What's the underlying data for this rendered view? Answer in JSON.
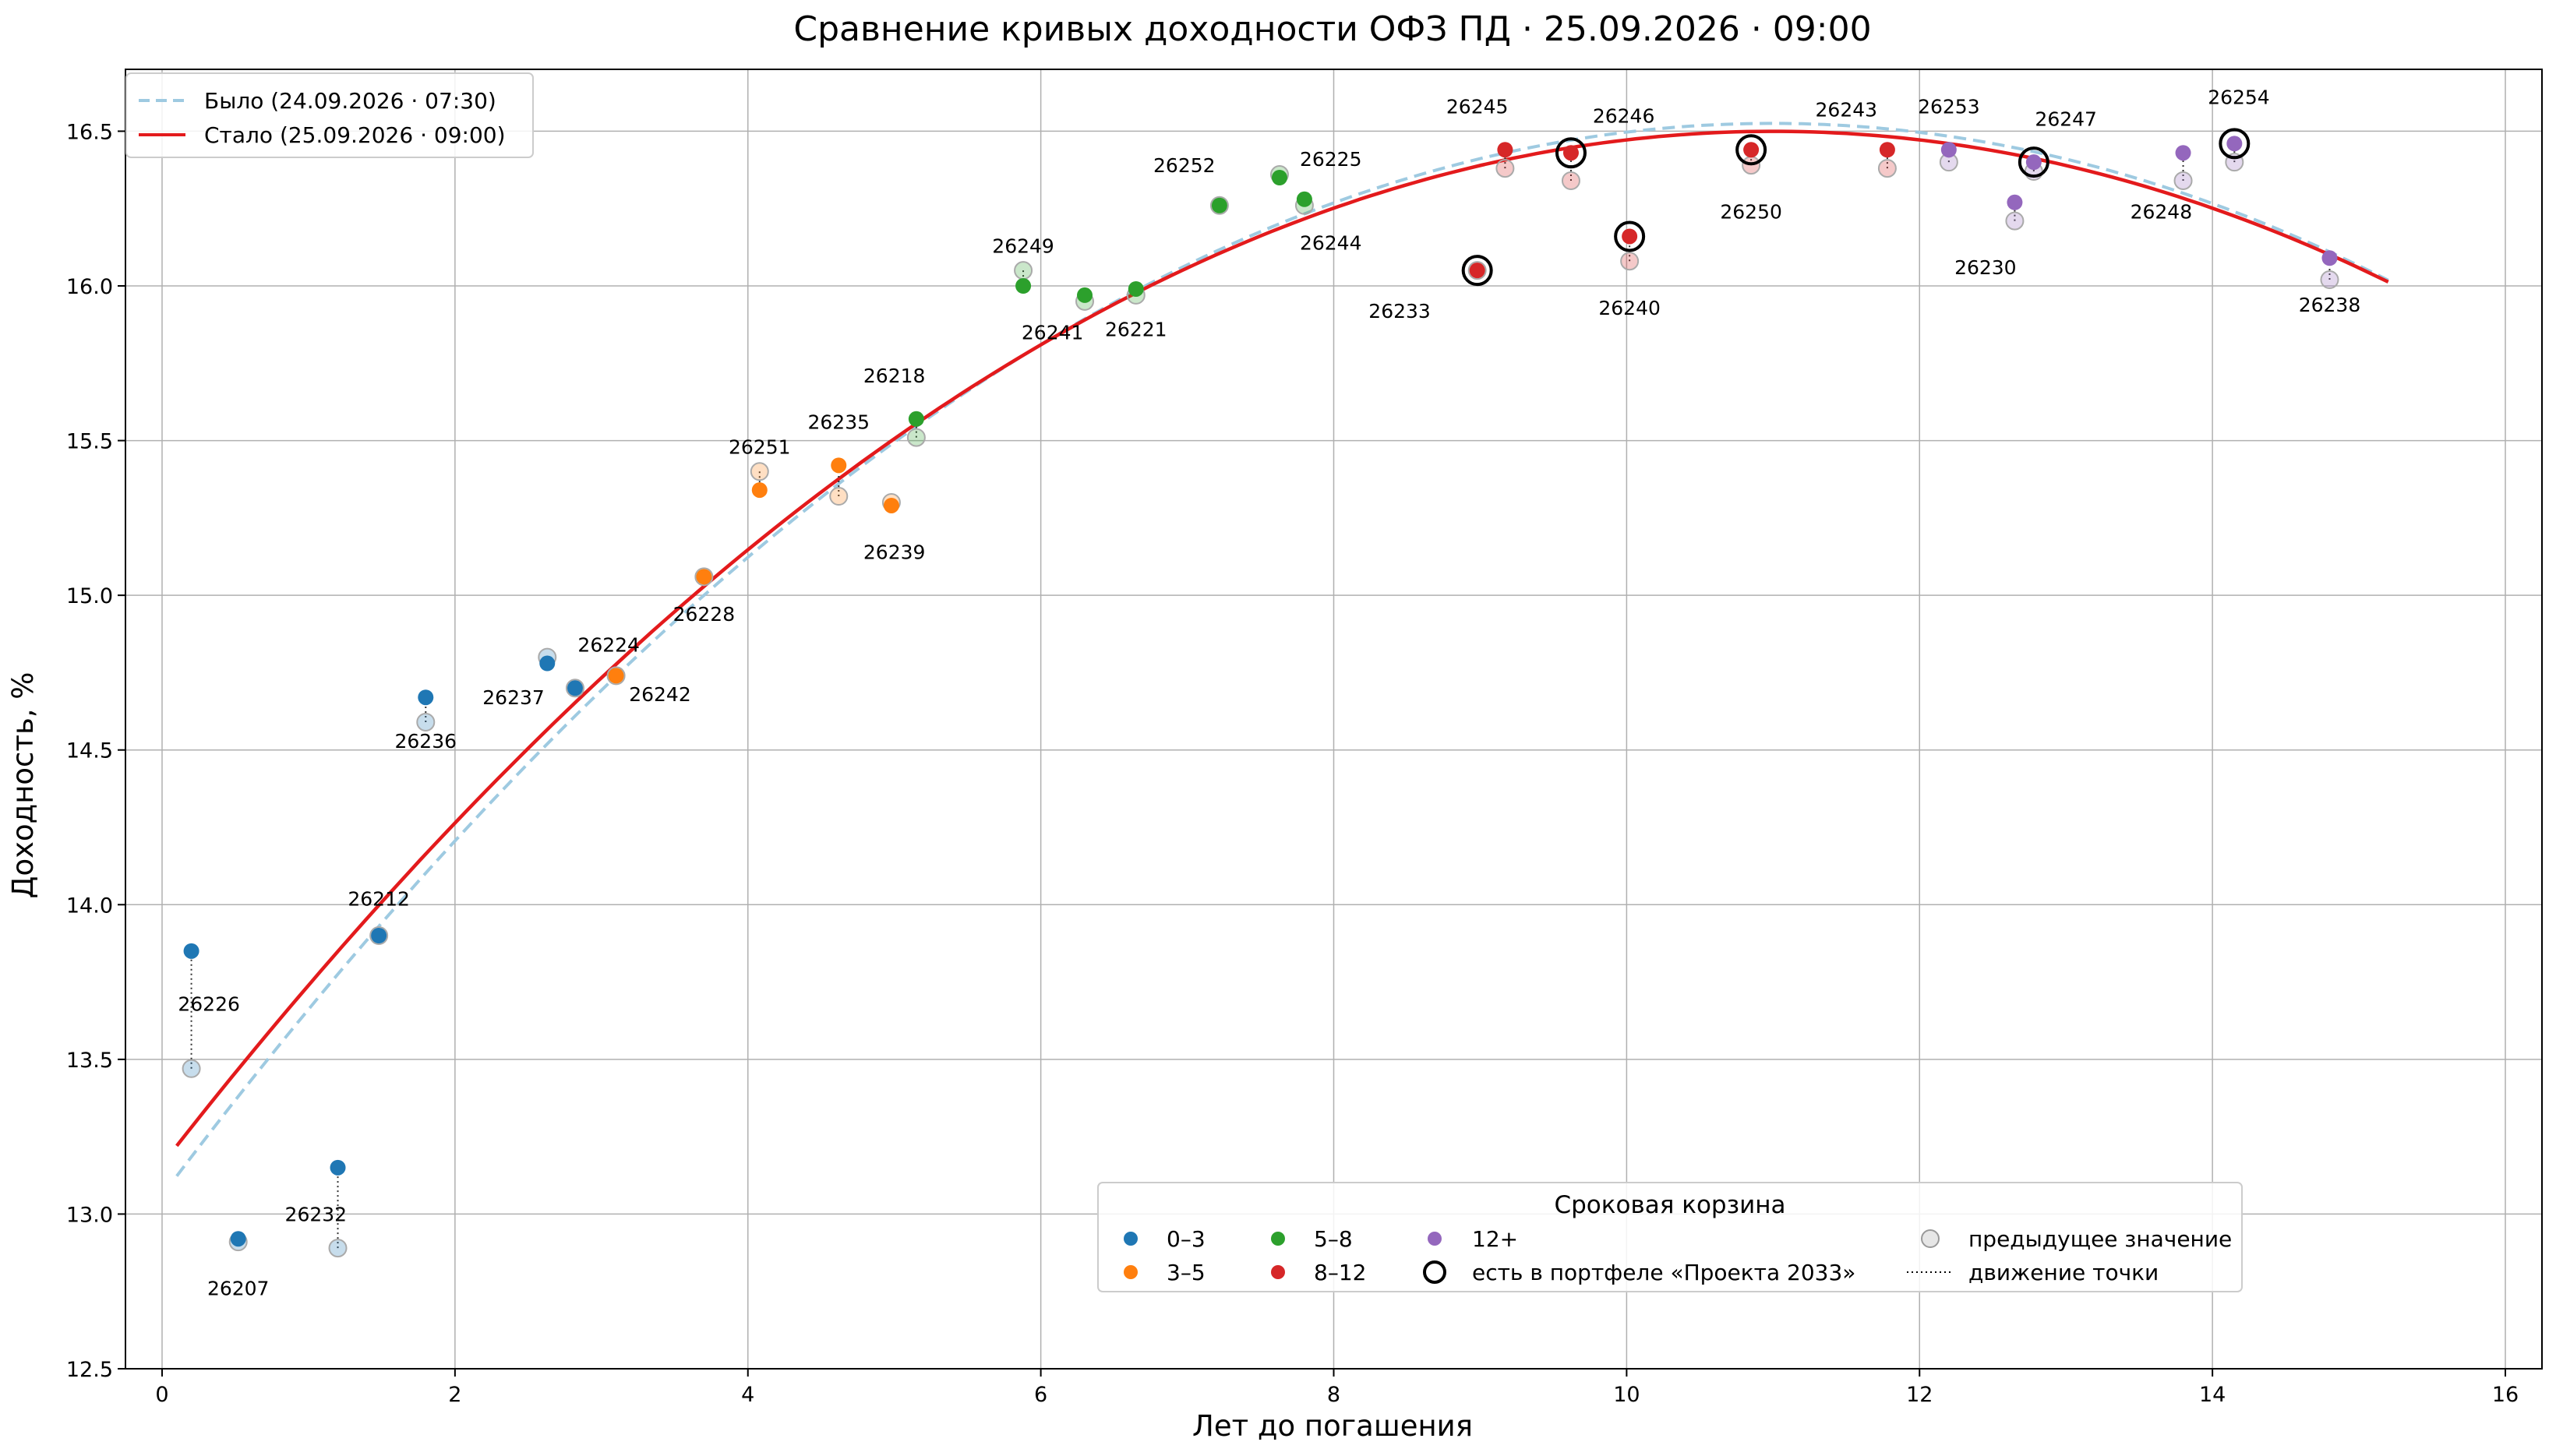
{
  "chart_data": {
    "type": "scatter",
    "title": "Сравнение кривых доходности ОФЗ ПД · 25.09.2026 · 09:00",
    "xlabel": "Лет до погашения",
    "ylabel": "Доходность, %",
    "xlim": [
      -0.25,
      16.25
    ],
    "ylim": [
      12.5,
      16.7
    ],
    "xticks": [
      0,
      2,
      4,
      6,
      8,
      10,
      12,
      14,
      16
    ],
    "yticks": [
      12.5,
      13.0,
      13.5,
      14.0,
      14.5,
      15.0,
      15.5,
      16.0,
      16.5
    ],
    "grid": true,
    "curves": [
      {
        "name": "Было (24.09.2026 · 07:30)",
        "style": "dashed",
        "color": "#9ecae1",
        "coef": [
          13.06,
          0.6304,
          -0.02867
        ],
        "x_range": [
          0.1,
          15.2
        ]
      },
      {
        "name": "Стало (25.09.2026 · 09:00)",
        "style": "solid",
        "color": "#e31a1c",
        "coef": [
          13.16,
          0.6072,
          -0.0276
        ],
        "x_range": [
          0.1,
          15.2
        ]
      }
    ],
    "buckets": [
      {
        "name": "0–3",
        "color": "#1f77b4"
      },
      {
        "name": "3–5",
        "color": "#ff7f0e"
      },
      {
        "name": "5–8",
        "color": "#2ca02c"
      },
      {
        "name": "8–12",
        "color": "#d62728"
      },
      {
        "name": "12+",
        "color": "#9467bd"
      }
    ],
    "points": [
      {
        "label": "26226",
        "x": 0.2,
        "y_prev": 13.47,
        "y_now": 13.85,
        "bucket": 0,
        "portfolio": false,
        "lx": 0.32,
        "ly": 13.68
      },
      {
        "label": "26207",
        "x": 0.52,
        "y_prev": 12.91,
        "y_now": 12.92,
        "bucket": 0,
        "portfolio": false,
        "lx": 0.52,
        "ly": 12.76
      },
      {
        "label": "26232",
        "x": 1.2,
        "y_prev": 12.89,
        "y_now": 13.15,
        "bucket": 0,
        "portfolio": false,
        "lx": 1.05,
        "ly": 13.0
      },
      {
        "label": "26212",
        "x": 1.48,
        "y_prev": 13.9,
        "y_now": 13.9,
        "bucket": 0,
        "portfolio": false,
        "lx": 1.48,
        "ly": 14.02
      },
      {
        "label": "26236",
        "x": 1.8,
        "y_prev": 14.59,
        "y_now": 14.67,
        "bucket": 0,
        "portfolio": false,
        "lx": 1.8,
        "ly": 14.53
      },
      {
        "label": "26237",
        "x": 2.63,
        "y_prev": 14.8,
        "y_now": 14.78,
        "bucket": 0,
        "portfolio": false,
        "lx": 2.4,
        "ly": 14.67
      },
      {
        "label": "26224",
        "x": 2.82,
        "y_prev": 14.7,
        "y_now": 14.7,
        "bucket": 0,
        "portfolio": false,
        "lx": 3.05,
        "ly": 14.84
      },
      {
        "label": "26242",
        "x": 3.1,
        "y_prev": 14.74,
        "y_now": 14.74,
        "bucket": 1,
        "portfolio": false,
        "lx": 3.4,
        "ly": 14.68
      },
      {
        "label": "26228",
        "x": 3.7,
        "y_prev": 15.06,
        "y_now": 15.06,
        "bucket": 1,
        "portfolio": false,
        "lx": 3.7,
        "ly": 14.94
      },
      {
        "label": "26251",
        "x": 4.08,
        "y_prev": 15.4,
        "y_now": 15.34,
        "bucket": 1,
        "portfolio": false,
        "lx": 4.08,
        "ly": 15.48
      },
      {
        "label": "26235",
        "x": 4.62,
        "y_prev": 15.32,
        "y_now": 15.42,
        "bucket": 1,
        "portfolio": false,
        "lx": 4.62,
        "ly": 15.56
      },
      {
        "label": "26239",
        "x": 4.98,
        "y_prev": 15.3,
        "y_now": 15.29,
        "bucket": 1,
        "portfolio": false,
        "lx": 5.0,
        "ly": 15.14
      },
      {
        "label": "26218",
        "x": 5.15,
        "y_prev": 15.51,
        "y_now": 15.57,
        "bucket": 2,
        "portfolio": false,
        "lx": 5.0,
        "ly": 15.71
      },
      {
        "label": "26249",
        "x": 5.88,
        "y_prev": 16.05,
        "y_now": 16.0,
        "bucket": 2,
        "portfolio": false,
        "lx": 5.88,
        "ly": 16.13
      },
      {
        "label": "26241",
        "x": 6.3,
        "y_prev": 15.95,
        "y_now": 15.97,
        "bucket": 2,
        "portfolio": false,
        "lx": 6.08,
        "ly": 15.85
      },
      {
        "label": "26221",
        "x": 6.65,
        "y_prev": 15.97,
        "y_now": 15.99,
        "bucket": 2,
        "portfolio": false,
        "lx": 6.65,
        "ly": 15.86
      },
      {
        "label": "26252",
        "x": 7.22,
        "y_prev": 16.26,
        "y_now": 16.26,
        "bucket": 2,
        "portfolio": false,
        "lx": 6.98,
        "ly": 16.39
      },
      {
        "label": "26225",
        "x": 7.63,
        "y_prev": 16.36,
        "y_now": 16.35,
        "bucket": 2,
        "portfolio": false,
        "lx": 7.98,
        "ly": 16.41
      },
      {
        "label": "26244",
        "x": 7.8,
        "y_prev": 16.26,
        "y_now": 16.28,
        "bucket": 2,
        "portfolio": false,
        "lx": 7.98,
        "ly": 16.14
      },
      {
        "label": "26233",
        "x": 8.98,
        "y_prev": 16.05,
        "y_now": 16.05,
        "bucket": 3,
        "portfolio": true,
        "lx": 8.45,
        "ly": 15.92
      },
      {
        "label": "26245",
        "x": 9.17,
        "y_prev": 16.38,
        "y_now": 16.44,
        "bucket": 3,
        "portfolio": false,
        "lx": 8.98,
        "ly": 16.58
      },
      {
        "label": "26246",
        "x": 9.62,
        "y_prev": 16.34,
        "y_now": 16.43,
        "bucket": 3,
        "portfolio": true,
        "lx": 9.98,
        "ly": 16.55
      },
      {
        "label": "26240",
        "x": 10.02,
        "y_prev": 16.08,
        "y_now": 16.16,
        "bucket": 3,
        "portfolio": true,
        "lx": 10.02,
        "ly": 15.93
      },
      {
        "label": "26250",
        "x": 10.85,
        "y_prev": 16.39,
        "y_now": 16.44,
        "bucket": 3,
        "portfolio": true,
        "lx": 10.85,
        "ly": 16.24
      },
      {
        "label": "26243",
        "x": 11.78,
        "y_prev": 16.38,
        "y_now": 16.44,
        "bucket": 3,
        "portfolio": false,
        "lx": 11.5,
        "ly": 16.57
      },
      {
        "label": "26253",
        "x": 12.2,
        "y_prev": 16.4,
        "y_now": 16.44,
        "bucket": 4,
        "portfolio": false,
        "lx": 12.2,
        "ly": 16.58
      },
      {
        "label": "26230",
        "x": 12.65,
        "y_prev": 16.21,
        "y_now": 16.27,
        "bucket": 4,
        "portfolio": false,
        "lx": 12.45,
        "ly": 16.06
      },
      {
        "label": "26247",
        "x": 12.78,
        "y_prev": 16.37,
        "y_now": 16.4,
        "bucket": 4,
        "portfolio": true,
        "lx": 13.0,
        "ly": 16.54
      },
      {
        "label": "26248",
        "x": 13.8,
        "y_prev": 16.34,
        "y_now": 16.43,
        "bucket": 4,
        "portfolio": false,
        "lx": 13.65,
        "ly": 16.24
      },
      {
        "label": "26254",
        "x": 14.15,
        "y_prev": 16.4,
        "y_now": 16.46,
        "bucket": 4,
        "portfolio": true,
        "lx": 14.18,
        "ly": 16.61
      },
      {
        "label": "26238",
        "x": 14.8,
        "y_prev": 16.02,
        "y_now": 16.09,
        "bucket": 4,
        "portfolio": false,
        "lx": 14.8,
        "ly": 15.94
      }
    ],
    "legend_curves": {
      "placement": "top-left"
    },
    "legend_buckets": {
      "placement": "lower-right",
      "title": "Сроковая корзина",
      "portfolio_label": "есть в портфеле «Проекта 2033»",
      "prev_label": "предыдущее значение",
      "move_label": "движение точки"
    }
  }
}
